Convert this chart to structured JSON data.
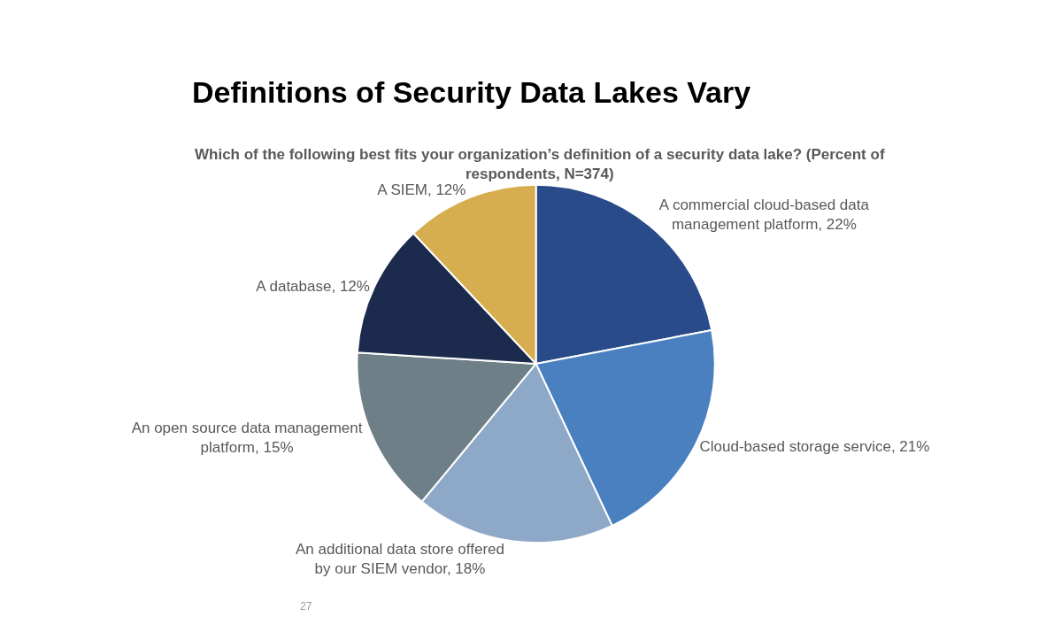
{
  "chart_data": {
    "type": "pie",
    "title": "Definitions of Security Data Lakes Vary",
    "subtitle": "Which of the following best fits your organization’s definition of a security data lake? (Percent of respondents, N=374)",
    "categories": [
      "A commercial cloud-based data management platform",
      "Cloud-based storage service",
      "An additional data store offered by our SIEM vendor",
      "An open source data management platform",
      "A database",
      "A SIEM"
    ],
    "values": [
      22,
      21,
      18,
      15,
      12,
      12
    ],
    "value_labels": [
      "22%",
      "21%",
      "18%",
      "15%",
      "12%",
      "12%"
    ],
    "colors": [
      "#2a4b8a",
      "#4a80c0",
      "#8ea9c8",
      "#6e7f87",
      "#1c2b4d",
      "#d6ae4f"
    ],
    "annotations": [
      "27"
    ],
    "legend": false
  }
}
